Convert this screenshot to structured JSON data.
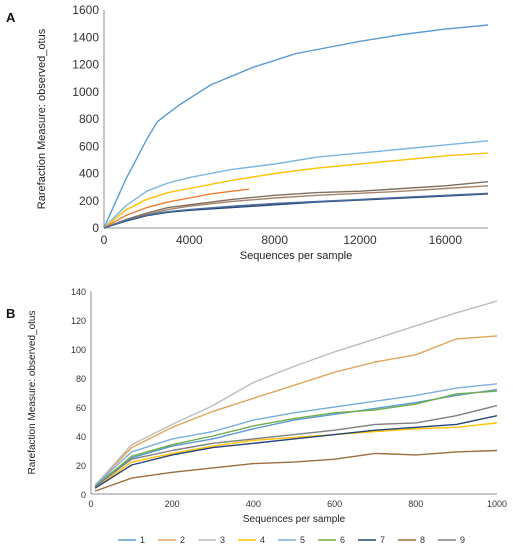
{
  "chart_data": [
    {
      "panel": "A",
      "type": "line",
      "xlabel": "Sequences per sample",
      "ylabel": "Rarefaction Measure: observed_otus",
      "xlim": [
        0,
        18000
      ],
      "ylim": [
        0,
        1600
      ],
      "xticks": [
        0,
        4000,
        8000,
        12000,
        16000
      ],
      "yticks": [
        0,
        200,
        400,
        600,
        800,
        1000,
        1200,
        1400,
        1600
      ],
      "grid": false,
      "colors": [
        "#5b9bd5",
        "#7ab6e0",
        "#ffc000",
        "#ed7d31",
        "#7f6f5f",
        "#a5826a",
        "#264478",
        "#4a6f9f"
      ],
      "series": [
        {
          "x": [
            0,
            1000,
            2000,
            2500,
            3500,
            5000,
            7000,
            9000,
            10000,
            12000,
            14000,
            16000,
            18000
          ],
          "y": [
            0,
            350,
            650,
            780,
            900,
            1050,
            1180,
            1280,
            1310,
            1370,
            1420,
            1460,
            1490
          ]
        },
        {
          "x": [
            0,
            1000,
            2000,
            3000,
            4000,
            6000,
            8000,
            10000,
            12000,
            14000,
            16000,
            18000
          ],
          "y": [
            0,
            160,
            270,
            330,
            370,
            430,
            470,
            520,
            550,
            580,
            610,
            640
          ]
        },
        {
          "x": [
            0,
            1000,
            2000,
            3000,
            4000,
            6000,
            8000,
            10000,
            12000,
            14000,
            16000,
            18000
          ],
          "y": [
            0,
            130,
            210,
            260,
            290,
            350,
            400,
            440,
            470,
            500,
            530,
            550
          ]
        },
        {
          "x": [
            0,
            1000,
            2000,
            3000,
            4000,
            5000,
            6000,
            6800
          ],
          "y": [
            0,
            90,
            150,
            190,
            220,
            250,
            270,
            285
          ]
        },
        {
          "x": [
            0,
            1000,
            2000,
            3000,
            4000,
            6000,
            8000,
            10000,
            12000,
            14000,
            16000,
            18000
          ],
          "y": [
            0,
            60,
            110,
            150,
            170,
            210,
            240,
            260,
            270,
            290,
            310,
            340
          ]
        },
        {
          "x": [
            0,
            1000,
            2000,
            3000,
            4000,
            6000,
            8000,
            10000,
            12000,
            14000,
            16000,
            18000
          ],
          "y": [
            0,
            55,
            100,
            135,
            160,
            195,
            220,
            240,
            255,
            270,
            290,
            310
          ]
        },
        {
          "x": [
            0,
            1000,
            2000,
            3000,
            4000,
            6000,
            8000,
            10000,
            12000,
            14000,
            16000,
            18000
          ],
          "y": [
            0,
            50,
            90,
            115,
            130,
            150,
            170,
            190,
            205,
            220,
            235,
            250
          ]
        },
        {
          "x": [
            0,
            1000,
            2000,
            3000,
            4000,
            6000,
            8000,
            10000,
            12000,
            14000,
            16000,
            18000
          ],
          "y": [
            0,
            55,
            95,
            120,
            135,
            160,
            180,
            195,
            210,
            225,
            240,
            255
          ]
        }
      ]
    },
    {
      "panel": "B",
      "type": "line",
      "xlabel": "Sequences per sample",
      "ylabel": "Rarefaction Measure: observed_otus",
      "xlim": [
        0,
        1000
      ],
      "ylim": [
        0,
        140
      ],
      "xticks": [
        0,
        200,
        400,
        600,
        800,
        1000
      ],
      "yticks": [
        0,
        20,
        40,
        60,
        80,
        100,
        120,
        140
      ],
      "grid": false,
      "legend_position": "bottom",
      "series": [
        {
          "name": "1",
          "color": "#5b9bd5",
          "x": [
            10,
            100,
            200,
            300,
            400,
            500,
            600,
            700,
            800,
            900,
            1000
          ],
          "y": [
            6,
            25,
            33,
            38,
            45,
            51,
            55,
            59,
            63,
            68,
            72
          ]
        },
        {
          "name": "2",
          "color": "#e0a45a",
          "x": [
            10,
            100,
            200,
            300,
            400,
            500,
            600,
            700,
            800,
            900,
            1000
          ],
          "y": [
            6,
            32,
            46,
            57,
            66,
            75,
            84,
            91,
            96,
            107,
            109
          ]
        },
        {
          "name": "3",
          "color": "#bdbdbd",
          "x": [
            10,
            100,
            200,
            300,
            400,
            500,
            600,
            700,
            800,
            900,
            1000
          ],
          "y": [
            6,
            34,
            48,
            61,
            77,
            88,
            98,
            107,
            116,
            125,
            133
          ]
        },
        {
          "name": "4",
          "color": "#ffc000",
          "x": [
            10,
            100,
            200,
            300,
            400,
            500,
            600,
            700,
            800,
            900,
            1000
          ],
          "y": [
            4,
            22,
            28,
            33,
            37,
            39,
            41,
            43,
            45,
            46,
            49
          ]
        },
        {
          "name": "5",
          "color": "#7cafdd",
          "x": [
            10,
            100,
            200,
            300,
            400,
            500,
            600,
            700,
            800,
            900,
            1000
          ],
          "y": [
            6,
            29,
            38,
            43,
            51,
            56,
            60,
            64,
            68,
            73,
            76
          ]
        },
        {
          "name": "6",
          "color": "#70ad47",
          "x": [
            10,
            100,
            200,
            300,
            400,
            500,
            600,
            700,
            800,
            900,
            1000
          ],
          "y": [
            5,
            26,
            34,
            40,
            47,
            52,
            56,
            58,
            62,
            69,
            71
          ]
        },
        {
          "name": "7",
          "color": "#264478",
          "x": [
            10,
            100,
            200,
            300,
            400,
            500,
            600,
            700,
            800,
            900,
            1000
          ],
          "y": [
            4,
            20,
            27,
            32,
            35,
            38,
            41,
            44,
            46,
            48,
            54
          ]
        },
        {
          "name": "8",
          "color": "#9e6e3d",
          "x": [
            10,
            100,
            200,
            300,
            400,
            500,
            600,
            700,
            800,
            900,
            1000
          ],
          "y": [
            2,
            11,
            15,
            18,
            21,
            22,
            24,
            28,
            27,
            29,
            30
          ]
        },
        {
          "name": "9",
          "color": "#7f7f7f",
          "x": [
            10,
            100,
            200,
            300,
            400,
            500,
            600,
            700,
            800,
            900,
            1000
          ],
          "y": [
            5,
            24,
            30,
            35,
            38,
            41,
            44,
            48,
            49,
            54,
            61
          ]
        }
      ]
    }
  ],
  "panels": [
    {
      "letter": "A"
    },
    {
      "letter": "B"
    }
  ]
}
